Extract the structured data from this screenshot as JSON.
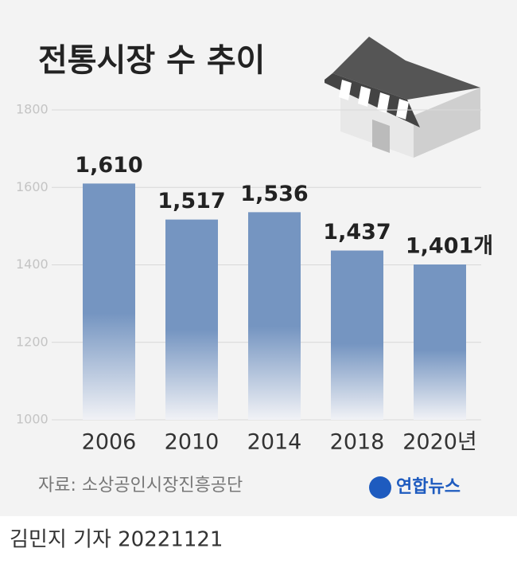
{
  "chart_data": {
    "type": "bar",
    "title": "전통시장 수 추이",
    "categories": [
      "2006",
      "2010",
      "2014",
      "2018",
      "2020년"
    ],
    "values": [
      1610,
      1517,
      1536,
      1437,
      1401
    ],
    "value_labels": [
      "1,610",
      "1,517",
      "1,536",
      "1,437",
      "1,401개"
    ],
    "color": "#7595c1",
    "ylim": [
      1000,
      1800
    ],
    "yticks": [
      1000,
      1200,
      1400,
      1600,
      1800
    ],
    "grid": true,
    "source": "자료: 소상공인시장진흥공단",
    "logo": "연합뉴스",
    "credit": "김민지 기자 20221121"
  }
}
